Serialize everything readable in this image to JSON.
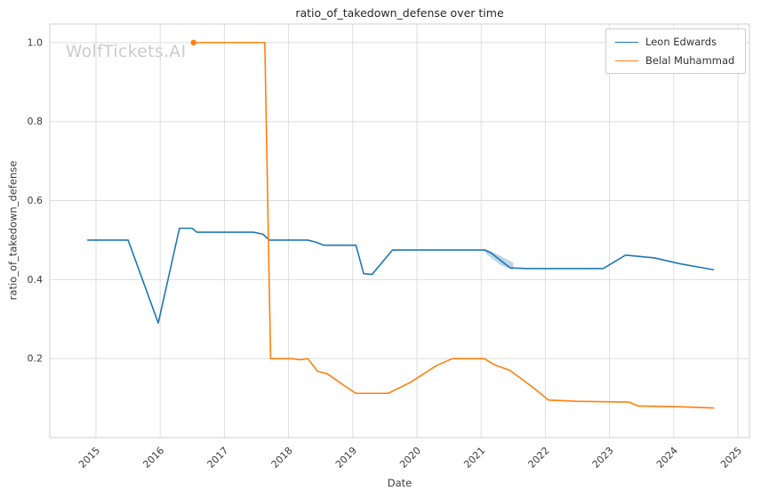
{
  "watermark": "WolfTickets.AI",
  "chart_data": {
    "type": "line",
    "title": "ratio_of_takedown_defense over time",
    "xlabel": "Date",
    "ylabel": "ratio_of_takedown_defense",
    "xlim": [
      2014.28,
      2025.18
    ],
    "ylim": [
      0.0,
      1.047
    ],
    "x_ticks": [
      2015,
      2016,
      2017,
      2018,
      2019,
      2020,
      2021,
      2022,
      2023,
      2024,
      2025
    ],
    "y_ticks": [
      0.2,
      0.4,
      0.6,
      0.8,
      1.0
    ],
    "grid": true,
    "grid_color": "#dedede",
    "frame_color": "#cfcfcf",
    "text_color": "#3b3b3b",
    "watermark_color": "#cbcbcb",
    "legend_position": "upper right",
    "series": [
      {
        "name": "Leon Edwards",
        "color": "#1f77b4",
        "marker_start": false,
        "points": [
          [
            2014.87,
            0.5
          ],
          [
            2015.5,
            0.5
          ],
          [
            2015.97,
            0.29
          ],
          [
            2016.3,
            0.53
          ],
          [
            2016.5,
            0.53
          ],
          [
            2016.57,
            0.52
          ],
          [
            2017.45,
            0.52
          ],
          [
            2017.6,
            0.515
          ],
          [
            2017.7,
            0.5
          ],
          [
            2018.3,
            0.5
          ],
          [
            2018.42,
            0.495
          ],
          [
            2018.55,
            0.487
          ],
          [
            2019.05,
            0.487
          ],
          [
            2019.17,
            0.415
          ],
          [
            2019.3,
            0.413
          ],
          [
            2019.62,
            0.475
          ],
          [
            2021.05,
            0.475
          ],
          [
            2021.15,
            0.468
          ],
          [
            2021.45,
            0.43
          ],
          [
            2021.7,
            0.428
          ],
          [
            2022.9,
            0.428
          ],
          [
            2023.25,
            0.462
          ],
          [
            2023.7,
            0.455
          ],
          [
            2024.1,
            0.44
          ],
          [
            2024.62,
            0.425
          ]
        ]
      },
      {
        "name": "Belal Muhammad",
        "color": "#ff7f0e",
        "marker_start": true,
        "points": [
          [
            2016.52,
            1.0
          ],
          [
            2017.63,
            1.0
          ],
          [
            2017.72,
            0.2
          ],
          [
            2018.05,
            0.2
          ],
          [
            2018.18,
            0.197
          ],
          [
            2018.3,
            0.2
          ],
          [
            2018.45,
            0.168
          ],
          [
            2018.6,
            0.162
          ],
          [
            2018.9,
            0.128
          ],
          [
            2019.05,
            0.112
          ],
          [
            2019.55,
            0.112
          ],
          [
            2019.9,
            0.14
          ],
          [
            2020.3,
            0.182
          ],
          [
            2020.55,
            0.2
          ],
          [
            2021.05,
            0.2
          ],
          [
            2021.2,
            0.185
          ],
          [
            2021.45,
            0.17
          ],
          [
            2021.8,
            0.128
          ],
          [
            2022.05,
            0.095
          ],
          [
            2022.5,
            0.092
          ],
          [
            2023.3,
            0.09
          ],
          [
            2023.45,
            0.08
          ],
          [
            2024.1,
            0.078
          ],
          [
            2024.62,
            0.075
          ]
        ]
      }
    ],
    "band": {
      "series": "Leon Edwards",
      "color": "rgba(31,119,180,0.30)",
      "points": [
        [
          2021.05,
          0.479
        ],
        [
          2021.2,
          0.468
        ],
        [
          2021.5,
          0.443
        ],
        [
          2021.5,
          0.424
        ],
        [
          2021.3,
          0.437
        ],
        [
          2021.08,
          0.465
        ]
      ]
    }
  }
}
